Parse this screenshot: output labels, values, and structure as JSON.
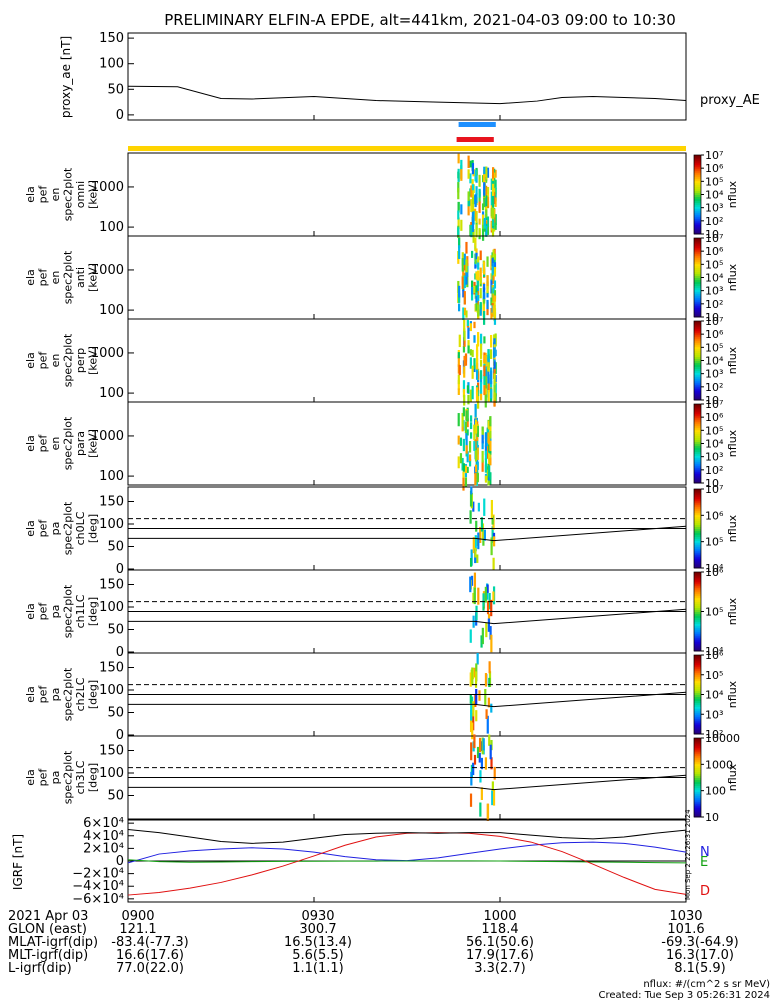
{
  "title": "PRELIMINARY ELFIN-A EPDE, alt=441km, 2021-04-03 09:00 to 10:30",
  "time_range": {
    "start": "09:00",
    "end": "10:30"
  },
  "time_ticks": [
    "0900",
    "0930",
    "1000",
    "1030"
  ],
  "proxy_panel": {
    "ylabel": "proxy_ae [nT]",
    "yticks": [
      "150",
      "100",
      "50",
      "0"
    ],
    "legend": "proxy_AE"
  },
  "bars": {
    "blue_color": "#1e90ff",
    "red_color": "#e8141e",
    "yellow_color": "#ffd400"
  },
  "spectrogram_panels": [
    {
      "ylabel": "ela pef en spec2plot omni [keV]",
      "yticks": [
        "1000",
        "100"
      ],
      "colorbar_label": "nflux"
    },
    {
      "ylabel": "ela pef en spec2plot anti [keV]",
      "yticks": [
        "1000",
        "100"
      ],
      "colorbar_label": "nflux"
    },
    {
      "ylabel": "ela pef en spec2plot perp [keV]",
      "yticks": [
        "1000",
        "100"
      ],
      "colorbar_label": "nflux"
    },
    {
      "ylabel": "ela pef en spec2plot para [keV]",
      "yticks": [
        "1000",
        "100"
      ],
      "colorbar_label": "nflux"
    }
  ],
  "pitch_panels": [
    {
      "ylabel": "ela pef pa spec2plot ch0LC [deg]",
      "yticks": [
        "150",
        "100",
        "50",
        "0"
      ],
      "colorbar_label": "nflux"
    },
    {
      "ylabel": "ela pef pa spec2plot ch1LC [deg]",
      "yticks": [
        "150",
        "100",
        "50",
        "0"
      ],
      "colorbar_label": "nflux"
    },
    {
      "ylabel": "ela pef pa spec2plot ch2LC [deg]",
      "yticks": [
        "150",
        "100",
        "50",
        "0"
      ],
      "colorbar_label": "nflux"
    },
    {
      "ylabel": "ela pef pa spec2plot ch3LC [deg]",
      "yticks": [
        "150",
        "100",
        "50"
      ],
      "colorbar_label": "nflux"
    }
  ],
  "igrf_panel": {
    "ylabel": "IGRF [nT]",
    "yticks": [
      "6×10⁴",
      "4×10⁴",
      "2×10⁴",
      "0",
      "−2×10⁴",
      "−4×10⁴",
      "−6×10⁴"
    ],
    "legend": [
      {
        "name": "N",
        "color": "#2020e0"
      },
      {
        "name": "E",
        "color": "#10a010"
      },
      {
        "name": "D",
        "color": "#e01010"
      }
    ]
  },
  "ephemeris": {
    "rows": [
      {
        "label": "2021 Apr 03",
        "values": [
          "0900",
          "0930",
          "1000",
          "1030"
        ]
      },
      {
        "label": "GLON (east)",
        "values": [
          "121.1",
          "300.7",
          "118.4",
          "101.6"
        ]
      },
      {
        "label": "MLAT-igrf(dip)",
        "values": [
          "-83.4(-77.3)",
          "16.5(13.4)",
          "56.1(50.6)",
          "-69.3(-64.9)"
        ]
      },
      {
        "label": "MLT-igrf(dip)",
        "values": [
          "16.6(17.6)",
          "5.6(5.5)",
          "17.9(17.6)",
          "16.3(17.0)"
        ]
      },
      {
        "label": "L-igrf(dip)",
        "values": [
          "77.0(22.0)",
          "1.1(1.1)",
          "3.3(2.7)",
          "8.1(5.9)"
        ]
      }
    ]
  },
  "footer": {
    "units": "nflux: #/(cm^2 s sr MeV)",
    "created": "Created: Tue Sep  3 05:26:31 2024",
    "side_stamp": "Mon Sep  2 22:26:31 2024"
  },
  "chart_data": [
    {
      "type": "line",
      "title": "PRELIMINARY ELFIN-A EPDE, alt=441km, 2021-04-03 09:00 to 10:30",
      "ylabel": "proxy_ae [nT]",
      "ylim": [
        -10,
        160
      ],
      "x_minutes_from_0900": [
        0,
        8,
        15,
        20,
        30,
        40,
        50,
        60,
        66,
        70,
        75,
        80,
        85,
        90
      ],
      "series": [
        {
          "name": "proxy_AE",
          "values": [
            56,
            55,
            32,
            31,
            36,
            28,
            25,
            22,
            27,
            34,
            36,
            34,
            32,
            28
          ]
        }
      ]
    },
    {
      "type": "heatmap",
      "title": "",
      "panels": [
        "omni",
        "anti",
        "perp",
        "para"
      ],
      "ylabel": "[keV]",
      "y_scale": "log",
      "ylim": [
        60,
        7000
      ],
      "colorbar": {
        "scale": "log",
        "range": [
          10,
          10000000
        ]
      },
      "active_interval": {
        "start": "09:53",
        "end": "09:59"
      }
    },
    {
      "type": "heatmap",
      "title": "",
      "panels": [
        "ch0LC",
        "ch1LC",
        "ch2LC",
        "ch3LC"
      ],
      "ylabel": "[deg]",
      "ylim": [
        0,
        180
      ],
      "colorbar_ranges": [
        [
          10000,
          10000000
        ],
        [
          10000,
          1000000
        ],
        [
          100,
          1000000
        ],
        [
          10,
          10000
        ]
      ],
      "active_interval": {
        "start": "09:55",
        "end": "09:59"
      },
      "lines": {
        "solid_lower": {
          "x": [
            "09:00",
            "09:56",
            "09:59",
            "10:30"
          ],
          "y": [
            68,
            68,
            63,
            95
          ]
        },
        "solid_upper": {
          "x": [
            "09:00",
            "10:30"
          ],
          "y": [
            90,
            90
          ]
        },
        "dashed": {
          "x": [
            "09:00",
            "10:30"
          ],
          "y": [
            112,
            112
          ]
        }
      }
    },
    {
      "type": "line",
      "title": "",
      "ylabel": "IGRF [nT]",
      "ylim": [
        -65000,
        65000
      ],
      "x_minutes_from_0900": [
        0,
        5,
        10,
        15,
        20,
        25,
        30,
        35,
        40,
        45,
        50,
        55,
        60,
        65,
        70,
        75,
        80,
        85,
        90
      ],
      "series": [
        {
          "name": "N",
          "values": [
            -3000,
            11000,
            16000,
            19000,
            21000,
            19000,
            14000,
            7000,
            2000,
            500,
            5000,
            12000,
            19000,
            25000,
            29000,
            30000,
            28000,
            22000,
            14000
          ]
        },
        {
          "name": "E",
          "values": [
            2000,
            -1000,
            -2000,
            -1500,
            -1000,
            -500,
            -300,
            -200,
            -100,
            0,
            100,
            200,
            0,
            -500,
            -1000,
            -1500,
            -2000,
            -2500,
            -3000
          ]
        },
        {
          "name": "D",
          "values": [
            -54000,
            -50000,
            -43000,
            -34000,
            -22000,
            -8000,
            8000,
            25000,
            38000,
            44000,
            45000,
            44000,
            39000,
            30000,
            15000,
            -5000,
            -26000,
            -45000,
            -53000
          ]
        },
        {
          "name": "",
          "values": [
            50000,
            45000,
            38000,
            31000,
            28000,
            30000,
            36000,
            42000,
            44000,
            45000,
            44000,
            45000,
            45000,
            41000,
            37000,
            35000,
            38000,
            44000,
            49000
          ]
        }
      ]
    }
  ]
}
